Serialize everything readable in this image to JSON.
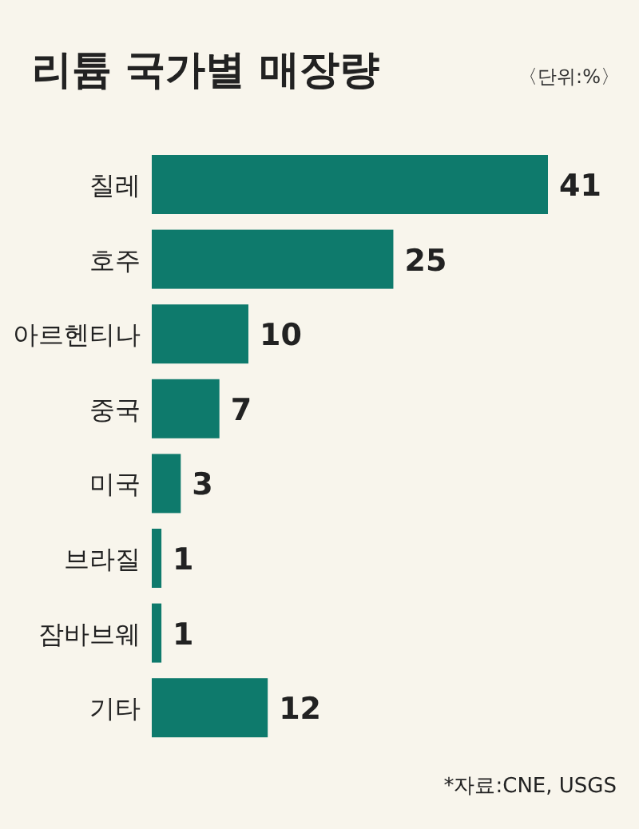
{
  "chart_data": {
    "type": "bar",
    "orientation": "horizontal",
    "title": "리튬 국가별 매장량",
    "subtitle": "〈단위:%〉",
    "categories": [
      "칠레",
      "호주",
      "아르헨티나",
      "중국",
      "미국",
      "브라질",
      "잠바브웨",
      "기타"
    ],
    "values": [
      41,
      25,
      10,
      7,
      3,
      1,
      1,
      12
    ],
    "color": "#0e7a6c",
    "data_labels": true,
    "annotations": [
      "*자료:CNE, USGS"
    ]
  }
}
